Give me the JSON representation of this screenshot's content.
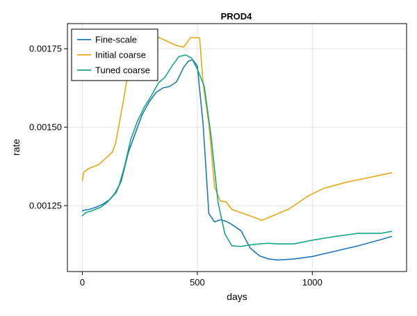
{
  "chart_data": {
    "type": "line",
    "title": "PROD4",
    "xlabel": "days",
    "ylabel": "rate",
    "xlim": [
      -65,
      1410
    ],
    "ylim": [
      0.00104,
      0.00183
    ],
    "x_ticks": [
      0,
      500,
      1000
    ],
    "x_tick_labels": [
      "0",
      "500",
      "1000"
    ],
    "y_ticks": [
      0.00125,
      0.0015,
      0.00175
    ],
    "y_tick_labels": [
      "0.00125",
      "0.00150",
      "0.00175"
    ],
    "grid": true,
    "legend_position": "top-left",
    "series": [
      {
        "name": "Fine-scale",
        "color": "#1f77b4",
        "x": [
          0,
          10,
          30,
          60,
          90,
          120,
          145,
          170,
          200,
          230,
          260,
          290,
          320,
          350,
          380,
          410,
          440,
          460,
          480,
          500,
          525,
          550,
          575,
          600,
          625,
          650,
          690,
          730,
          770,
          810,
          850,
          880,
          920,
          1000,
          1100,
          1200,
          1300,
          1345
        ],
        "y": [
          0.001233,
          0.001236,
          0.001238,
          0.001245,
          0.001255,
          0.00127,
          0.00129,
          0.00133,
          0.00142,
          0.00148,
          0.00154,
          0.00158,
          0.00161,
          0.001625,
          0.00163,
          0.001645,
          0.00169,
          0.00171,
          0.001715,
          0.001695,
          0.00151,
          0.001225,
          0.001198,
          0.001205,
          0.0012,
          0.00119,
          0.00117,
          0.001115,
          0.00109,
          0.00108,
          0.001077,
          0.001078,
          0.00108,
          0.001088,
          0.001105,
          0.001122,
          0.001142,
          0.001152
        ]
      },
      {
        "name": "Initial coarse",
        "color": "#e6a817",
        "x": [
          0,
          5,
          20,
          40,
          70,
          100,
          130,
          145,
          160,
          180,
          200,
          225,
          250,
          270,
          290,
          320,
          350,
          380,
          410,
          440,
          470,
          490,
          510,
          525,
          550,
          575,
          600,
          625,
          650,
          700,
          750,
          780,
          820,
          900,
          980,
          1050,
          1150,
          1250,
          1345
        ],
        "y": [
          0.00133,
          0.001355,
          0.001365,
          0.001372,
          0.00138,
          0.0014,
          0.00142,
          0.00145,
          0.00151,
          0.00159,
          0.00168,
          0.00176,
          0.0018,
          0.001812,
          0.00181,
          0.00179,
          0.00178,
          0.00177,
          0.00176,
          0.001755,
          0.001785,
          0.001785,
          0.001785,
          0.00164,
          0.00151,
          0.00131,
          0.001265,
          0.001262,
          0.001238,
          0.001225,
          0.001212,
          0.001203,
          0.001215,
          0.00124,
          0.00128,
          0.001305,
          0.001325,
          0.00134,
          0.001355
        ]
      },
      {
        "name": "Tuned coarse",
        "color": "#17a589",
        "x": [
          0,
          15,
          40,
          80,
          110,
          140,
          160,
          185,
          210,
          240,
          270,
          300,
          330,
          360,
          390,
          420,
          450,
          475,
          500,
          530,
          560,
          590,
          620,
          650,
          690,
          730,
          770,
          810,
          850,
          920,
          1000,
          1100,
          1200,
          1300,
          1345
        ],
        "y": [
          0.001218,
          0.001228,
          0.001233,
          0.001245,
          0.001262,
          0.001288,
          0.001315,
          0.00138,
          0.00146,
          0.00152,
          0.001565,
          0.0016,
          0.00164,
          0.00166,
          0.001695,
          0.001725,
          0.00173,
          0.00172,
          0.001685,
          0.00163,
          0.00147,
          0.00126,
          0.00116,
          0.001122,
          0.00112,
          0.001125,
          0.001128,
          0.00113,
          0.001128,
          0.001128,
          0.00114,
          0.001152,
          0.001162,
          0.001162,
          0.001168
        ]
      }
    ]
  }
}
